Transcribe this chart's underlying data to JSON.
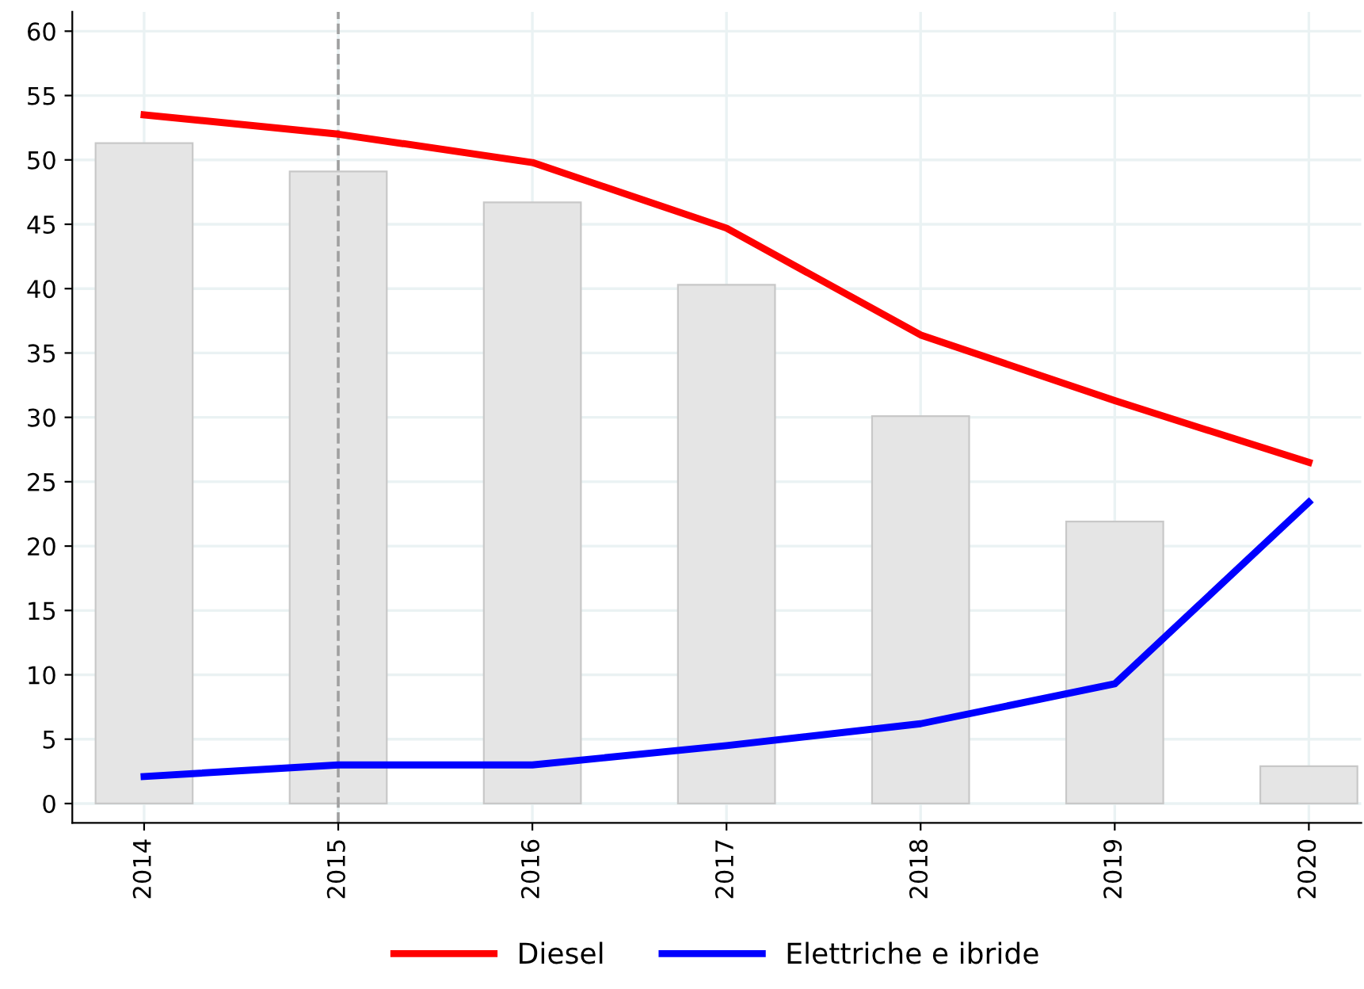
{
  "chart_data": {
    "type": "bar",
    "categories": [
      "2014",
      "2015",
      "2016",
      "2017",
      "2018",
      "2019",
      "2020"
    ],
    "series": [
      {
        "color": "#e5e5e5",
        "values": [
          51.3,
          49.1,
          46.7,
          40.3,
          30.1,
          21.9,
          2.9
        ]
      },
      {
        "type": "line",
        "name": "Diesel",
        "color": "#ff0000",
        "values": [
          53.5,
          52.0,
          49.8,
          44.7,
          36.4,
          31.3,
          26.5
        ]
      },
      {
        "type": "line",
        "name": "Elettriche e ibride",
        "color": "#0000ff",
        "values": [
          2.1,
          3.0,
          3.0,
          4.5,
          6.2,
          9.3,
          23.4
        ]
      }
    ],
    "ylim": [
      -1.5,
      61.5
    ],
    "yticks": [
      0,
      5,
      10,
      15,
      20,
      25,
      30,
      35,
      40,
      45,
      50,
      55,
      60
    ],
    "ref_lines": [
      {
        "axis": "x",
        "value": "2015",
        "color": "#a0a0a0",
        "line_style": "dashed"
      }
    ],
    "grid": true,
    "legend": "bottom",
    "marker": "none",
    "line_style": "solid"
  }
}
